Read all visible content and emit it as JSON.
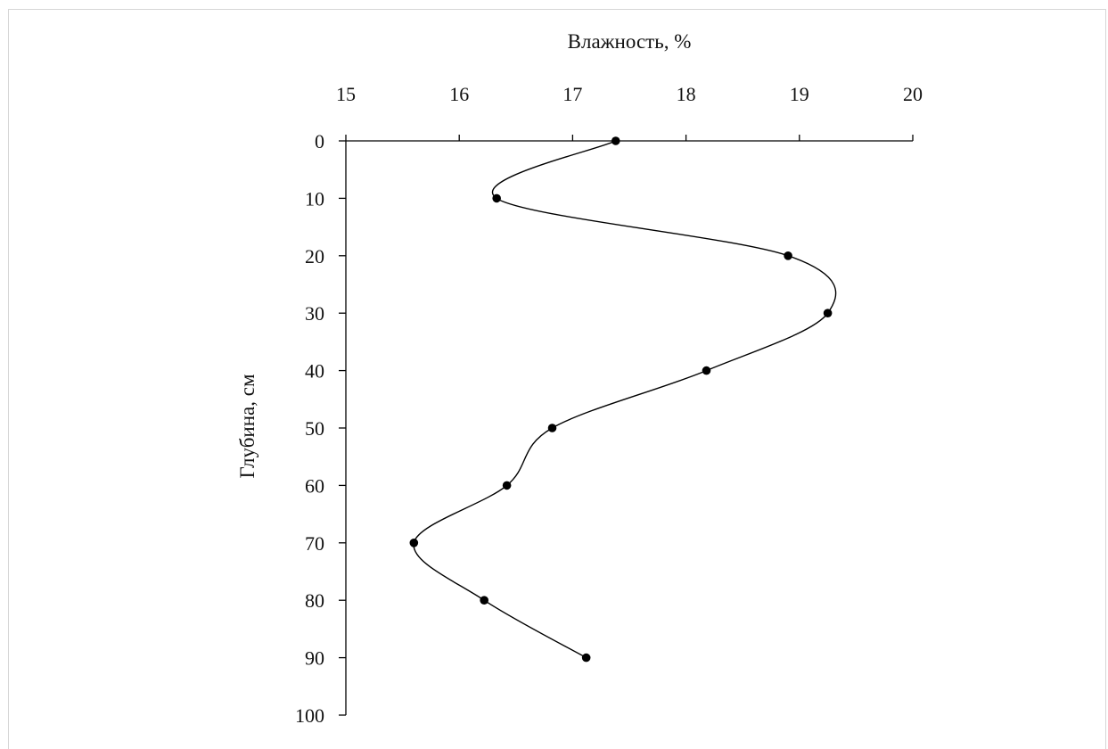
{
  "chart_data": {
    "type": "line",
    "title": "",
    "xlabel": "Влажность, %",
    "ylabel": "Глубина, см",
    "xlim": [
      15,
      20
    ],
    "ylim": [
      0,
      100
    ],
    "x_axis_position": "top",
    "y_axis_inverted": true,
    "grid": false,
    "legend": "none",
    "smooth": true,
    "line_color": "#000000",
    "marker_color": "#000000",
    "x_ticks": [
      "15",
      "16",
      "17",
      "18",
      "19",
      "20"
    ],
    "y_ticks": [
      "0",
      "10",
      "20",
      "30",
      "40",
      "50",
      "60",
      "70",
      "80",
      "90",
      "100"
    ],
    "series": [
      {
        "points": [
          {
            "x": 17.38,
            "y": 0
          },
          {
            "x": 16.33,
            "y": 10
          },
          {
            "x": 18.9,
            "y": 20
          },
          {
            "x": 19.25,
            "y": 30
          },
          {
            "x": 18.18,
            "y": 40
          },
          {
            "x": 16.82,
            "y": 50
          },
          {
            "x": 16.42,
            "y": 60
          },
          {
            "x": 15.6,
            "y": 70
          },
          {
            "x": 16.22,
            "y": 80
          },
          {
            "x": 17.12,
            "y": 90
          }
        ]
      }
    ]
  }
}
